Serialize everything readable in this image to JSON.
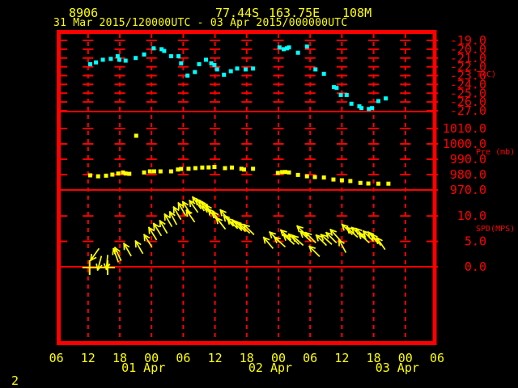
{
  "header": {
    "station_id": "8906",
    "latitude": "77.44S",
    "longitude": "163.75E",
    "elevation": "108M",
    "time_range": "31 Mar 2015/120000UTC - 03 Apr 2015/000000UTC"
  },
  "page_number": "2",
  "colors": {
    "background": "#000000",
    "axis": "#ff0000",
    "header_text": "#ffff00",
    "temperature": "#00ffff",
    "pressure": "#ffff00",
    "wind": "#ffff00"
  },
  "chart_data": {
    "type": "scatter",
    "title": "31 Mar 2015/120000UTC - 03 Apr 2015/000000UTC",
    "x_axis": {
      "start": "31 Mar 2015 06:00 UTC",
      "hours_span": 72,
      "tick_every_hours": 6,
      "tick_labels": [
        "06",
        "12",
        "18",
        "00",
        "06",
        "12",
        "18",
        "00",
        "06",
        "12",
        "18",
        "00",
        "06"
      ],
      "date_labels": [
        {
          "label": "01 Apr",
          "hour": 18
        },
        {
          "label": "02 Apr",
          "hour": 42
        },
        {
          "label": "03 Apr",
          "hour": 66
        }
      ],
      "grid": true
    },
    "panels": [
      {
        "name": "temperature",
        "axis_title": "T(C)",
        "tick_values": [
          -19,
          -20,
          -21,
          -22,
          -23,
          -24,
          -25,
          -26,
          -27
        ],
        "tick_labels": [
          "-19.0",
          "-20.0",
          "-21.0",
          "-22.0",
          "-23.0",
          "-24.0",
          "-25.0",
          "-26.0",
          "-27.0"
        ],
        "series": [
          {
            "name": "air-temperature",
            "color": "#00ffff",
            "points": [
              [
                6.4,
                -21.7
              ],
              [
                7.5,
                -21.5
              ],
              [
                8.8,
                -21.2
              ],
              [
                10.3,
                -21.1
              ],
              [
                11.6,
                -20.8
              ],
              [
                11.9,
                -21.2
              ],
              [
                13.1,
                -21.3
              ],
              [
                15.0,
                -21.0
              ],
              [
                16.6,
                -20.6
              ],
              [
                18.4,
                -19.9
              ],
              [
                19.9,
                -20.0
              ],
              [
                20.4,
                -20.2
              ],
              [
                21.7,
                -20.8
              ],
              [
                23.1,
                -20.8
              ],
              [
                23.6,
                -21.6
              ],
              [
                24.8,
                -23.0
              ],
              [
                26.2,
                -22.6
              ],
              [
                27.0,
                -21.7
              ],
              [
                28.3,
                -21.2
              ],
              [
                29.3,
                -21.6
              ],
              [
                29.9,
                -21.8
              ],
              [
                30.4,
                -22.3
              ],
              [
                31.7,
                -22.9
              ],
              [
                33.0,
                -22.5
              ],
              [
                34.2,
                -22.2
              ],
              [
                35.8,
                -22.3
              ],
              [
                37.2,
                -22.2
              ],
              [
                42.2,
                -19.8
              ],
              [
                43.0,
                -20.0
              ],
              [
                43.6,
                -19.9
              ],
              [
                44.0,
                -19.8
              ],
              [
                45.7,
                -20.4
              ],
              [
                47.4,
                -19.7
              ],
              [
                49.0,
                -22.3
              ],
              [
                50.6,
                -22.8
              ],
              [
                52.5,
                -24.3
              ],
              [
                53.0,
                -24.4
              ],
              [
                53.8,
                -25.2
              ],
              [
                54.9,
                -25.2
              ],
              [
                55.8,
                -26.2
              ],
              [
                57.3,
                -26.5
              ],
              [
                57.7,
                -26.7
              ],
              [
                59.1,
                -26.8
              ],
              [
                59.7,
                -26.7
              ],
              [
                60.9,
                -25.9
              ],
              [
                62.3,
                -25.6
              ]
            ]
          }
        ]
      },
      {
        "name": "pressure",
        "axis_title": "Pre (mb)",
        "tick_values": [
          1010,
          1000,
          990,
          980,
          970
        ],
        "tick_labels": [
          "1010.0",
          "1000.0",
          "990.0",
          "980.0",
          "970.0"
        ],
        "series": [
          {
            "name": "station-pressure",
            "color": "#ffff00",
            "points": [
              [
                6.4,
                979.5
              ],
              [
                7.9,
                978.9
              ],
              [
                9.4,
                979.3
              ],
              [
                10.6,
                980.0
              ],
              [
                11.7,
                980.7
              ],
              [
                12.6,
                981.4
              ],
              [
                13.1,
                980.7
              ],
              [
                13.8,
                980.5
              ],
              [
                15.1,
                1005.3
              ],
              [
                16.6,
                981.4
              ],
              [
                17.7,
                982.1
              ],
              [
                18.5,
                982.1
              ],
              [
                19.7,
                982.1
              ],
              [
                21.7,
                982.1
              ],
              [
                23.0,
                983.3
              ],
              [
                23.6,
                983.7
              ],
              [
                25.0,
                983.8
              ],
              [
                26.3,
                984.2
              ],
              [
                27.6,
                984.6
              ],
              [
                28.8,
                984.7
              ],
              [
                29.9,
                985.0
              ],
              [
                31.9,
                984.2
              ],
              [
                33.2,
                984.6
              ],
              [
                35.0,
                983.8
              ],
              [
                35.5,
                983.3
              ],
              [
                37.2,
                983.8
              ],
              [
                41.9,
                981.1
              ],
              [
                42.7,
                981.6
              ],
              [
                43.3,
                981.7
              ],
              [
                44.0,
                981.4
              ],
              [
                45.7,
                979.8
              ],
              [
                47.4,
                978.9
              ],
              [
                48.9,
                978.4
              ],
              [
                50.6,
                978.1
              ],
              [
                52.4,
                976.8
              ],
              [
                54.0,
                976.3
              ],
              [
                55.6,
                975.8
              ],
              [
                57.5,
                974.6
              ],
              [
                59.0,
                974.2
              ],
              [
                60.9,
                974.1
              ],
              [
                62.8,
                974.1
              ]
            ]
          }
        ]
      },
      {
        "name": "wind_speed",
        "axis_title": "SPD(MPS)",
        "tick_values": [
          10,
          5,
          0
        ],
        "tick_labels": [
          "10.0",
          "5.0",
          "0.0"
        ],
        "color": "#ffff00",
        "calm_marks_hours": [
          6.3,
          9.7
        ],
        "arrows": [
          [
            8.0,
            3.5,
            215
          ],
          [
            8.5,
            2.0,
            195
          ],
          [
            9.7,
            2.2,
            185
          ],
          [
            11.7,
            1.0,
            -20
          ],
          [
            12.2,
            1.3,
            -25
          ],
          [
            14.1,
            2.2,
            -30
          ],
          [
            16.3,
            2.7,
            -30
          ],
          [
            18.0,
            4.0,
            -32
          ],
          [
            18.9,
            5.4,
            -32
          ],
          [
            19.8,
            6.2,
            -32
          ],
          [
            20.9,
            6.7,
            -30
          ],
          [
            21.8,
            8.0,
            -30
          ],
          [
            22.7,
            8.4,
            -28
          ],
          [
            23.5,
            9.4,
            -30
          ],
          [
            24.4,
            10.2,
            -30
          ],
          [
            25.3,
            10.5,
            -32
          ],
          [
            26.1,
            8.9,
            -35
          ],
          [
            26.7,
            10.8,
            -35
          ],
          [
            27.3,
            11.5,
            -35
          ],
          [
            27.9,
            11.1,
            -33
          ],
          [
            28.5,
            10.8,
            -33
          ],
          [
            29.1,
            10.5,
            -35
          ],
          [
            29.8,
            9.9,
            -35
          ],
          [
            30.4,
            9.2,
            -38
          ],
          [
            31.1,
            8.6,
            -35
          ],
          [
            31.9,
            7.5,
            -38
          ],
          [
            32.7,
            9.1,
            -40
          ],
          [
            33.4,
            8.1,
            -42
          ],
          [
            34.2,
            7.6,
            -45
          ],
          [
            35.0,
            7.2,
            -42
          ],
          [
            35.7,
            7.0,
            -45
          ],
          [
            36.5,
            6.7,
            -48
          ],
          [
            37.3,
            6.4,
            -45
          ],
          [
            40.9,
            3.7,
            -40
          ],
          [
            42.2,
            4.9,
            -45
          ],
          [
            43.2,
            4.0,
            -48
          ],
          [
            44.3,
            5.3,
            -45
          ],
          [
            44.9,
            4.5,
            -48
          ],
          [
            45.8,
            4.5,
            -45
          ],
          [
            46.6,
            4.3,
            -48
          ],
          [
            47.4,
            6.1,
            -45
          ],
          [
            48.1,
            5.1,
            -48
          ],
          [
            49.0,
            4.8,
            -45
          ],
          [
            49.7,
            2.1,
            -45
          ],
          [
            51.0,
            4.3,
            -45
          ],
          [
            52.0,
            4.5,
            -48
          ],
          [
            52.9,
            4.8,
            -45
          ],
          [
            53.6,
            5.3,
            -42
          ],
          [
            54.7,
            2.9,
            -28
          ],
          [
            55.9,
            6.4,
            -45
          ],
          [
            56.9,
            5.9,
            -48
          ],
          [
            57.8,
            5.9,
            -48
          ],
          [
            58.5,
            5.6,
            -45
          ],
          [
            59.1,
            4.8,
            -48
          ],
          [
            59.9,
            5.1,
            -45
          ],
          [
            60.7,
            4.8,
            -42
          ],
          [
            61.3,
            4.3,
            -40
          ],
          [
            62.1,
            3.5,
            -35
          ]
        ]
      }
    ]
  }
}
